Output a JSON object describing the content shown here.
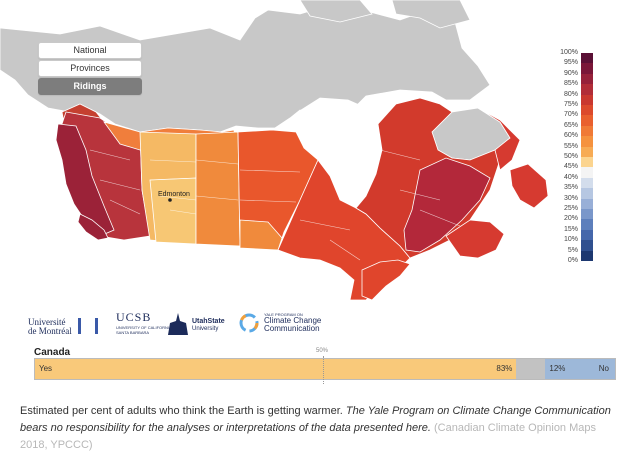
{
  "view_controls": {
    "national": "National",
    "provinces": "Provinces",
    "ridings": "Ridings",
    "selected": "Ridings"
  },
  "map": {
    "city_labels": [
      "Edmonton"
    ],
    "colors": {
      "water": "#ffffff",
      "no_data_land": "#c8c8c8",
      "bc": "#b8343c",
      "bc_coast": "#9b2238",
      "alberta": "#f5b964",
      "alberta_south": "#f7c774",
      "saskatchewan": "#f08a3c",
      "manitoba": "#e9572c",
      "ontario": "#e0452c",
      "quebec": "#d23a2c",
      "quebec_south": "#b3283a",
      "atlantic": "#d63a30",
      "nunavut_south": "#c73030",
      "yukon": "#c54030",
      "nwt": "#f07e3c",
      "city_dot": "#222222"
    }
  },
  "legend": {
    "labels": [
      "100%",
      "95%",
      "90%",
      "85%",
      "80%",
      "75%",
      "70%",
      "65%",
      "60%",
      "55%",
      "50%",
      "45%",
      "40%",
      "35%",
      "30%",
      "25%",
      "20%",
      "15%",
      "10%",
      "5%",
      "0%"
    ],
    "colors": [
      "#5a1035",
      "#7a1638",
      "#96213a",
      "#b12d38",
      "#c9382f",
      "#dc4a2c",
      "#e9602e",
      "#f07a36",
      "#f5923e",
      "#f7ab54",
      "#fbd48f",
      "#f4f4f4",
      "#d3ddec",
      "#b6c7e2",
      "#98afd7",
      "#7a97ca",
      "#5d7fbc",
      "#4567ab",
      "#30508f",
      "#1d3870"
    ]
  },
  "logos": {
    "montreal_line1": "Université",
    "montreal_line2": "de Montréal",
    "ucsb": "UCSB",
    "ucsb_sub1": "UNIVERSITY OF CALIFORNIA",
    "ucsb_sub2": "SANTA BARBARA",
    "utah_line1": "UtahState",
    "utah_line2": "University",
    "yale_small": "YALE PROGRAM ON",
    "yale_line1": "Climate Change",
    "yale_line2": "Communication"
  },
  "bar": {
    "region": "Canada",
    "midpoint_label": "50%",
    "yes_label": "Yes",
    "yes_value": 83,
    "yes_text": "83%",
    "no_label": "No",
    "no_value": 12,
    "no_text": "12%",
    "yes_color": "#f9c97a",
    "neutral_color": "#c2c2c2",
    "no_color": "#9db8d9"
  },
  "caption": {
    "main": "Estimated per cent of adults who think the Earth is getting warmer. ",
    "note": "The Yale Program on Climate Change Communication bears no responsibility for the analyses or interpretations of the data presented here.",
    "source": " (Canadian Climate Opinion Maps 2018, YPCCC)"
  }
}
